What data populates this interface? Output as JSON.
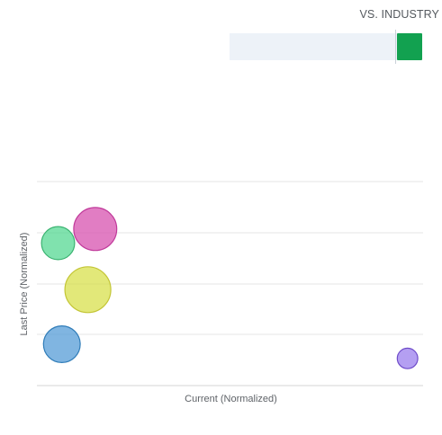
{
  "comparison": {
    "label": "VS. INDUSTRY",
    "indicator_color": "#12a150",
    "track_color": "#edf2f8",
    "indicator_fraction": 0.95
  },
  "chart_data": {
    "type": "scatter",
    "title": "",
    "xlabel": "Current (Normalized)",
    "ylabel": "Last Price (Normalized)",
    "xlim": [
      0,
      1
    ],
    "ylim": [
      0,
      1
    ],
    "grid": true,
    "points": [
      {
        "x": 0.14,
        "y": 0.73,
        "size": 0.44,
        "color": "#c0399a",
        "fill": "rgba(212,70,170,0.7)"
      },
      {
        "x": 0.04,
        "y": 0.66,
        "size": 0.26,
        "color": "#3bb371",
        "fill": "rgba(74,214,140,0.7)"
      },
      {
        "x": 0.12,
        "y": 0.43,
        "size": 0.5,
        "color": "#c3c535",
        "fill": "rgba(214,222,64,0.7)"
      },
      {
        "x": 0.05,
        "y": 0.16,
        "size": 0.32,
        "color": "#2f7cb8",
        "fill": "rgba(74,150,212,0.7)"
      },
      {
        "x": 0.98,
        "y": 0.09,
        "size": 0.1,
        "color": "#6e4bc9",
        "fill": "rgba(148,118,236,0.7)"
      }
    ]
  }
}
